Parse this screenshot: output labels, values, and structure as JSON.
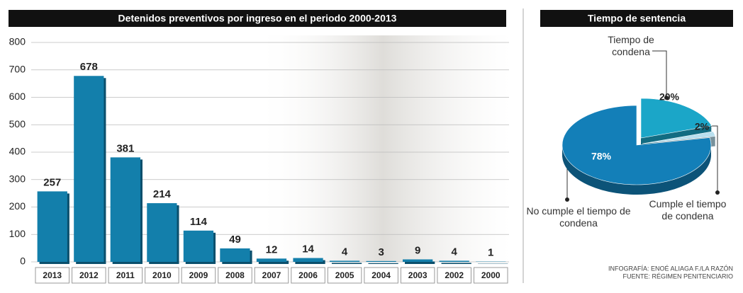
{
  "chart_data": [
    {
      "type": "bar",
      "title": "Detenidos preventivos por ingreso en el periodo 2000-2013",
      "categories": [
        "2013",
        "2012",
        "2011",
        "2010",
        "2009",
        "2008",
        "2007",
        "2006",
        "2005",
        "2004",
        "2003",
        "2002",
        "2000"
      ],
      "values": [
        257,
        678,
        381,
        214,
        114,
        49,
        12,
        14,
        4,
        3,
        9,
        4,
        1
      ],
      "color": "#137fab",
      "ylim": [
        0,
        800
      ],
      "yticks": [
        0,
        100,
        200,
        300,
        400,
        500,
        600,
        700,
        800
      ],
      "grid": true
    },
    {
      "type": "pie",
      "title": "Tiempo de sentencia",
      "categories": [
        "Tiempo de condena",
        "Cumple el tiempo de condena",
        "No cumple el tiempo de condena"
      ],
      "values": [
        20,
        2,
        78
      ],
      "value_labels": [
        "20%",
        "2%",
        "78%"
      ],
      "colors": [
        "#1ba6c8",
        "#b9dfee",
        "#137fb8"
      ]
    }
  ],
  "credits": [
    "INFOGRAFÍA: ENOÉ ALIAGA F./LA RAZÓN",
    "FUENTE: RÉGIMEN PENITENCIARIO"
  ]
}
